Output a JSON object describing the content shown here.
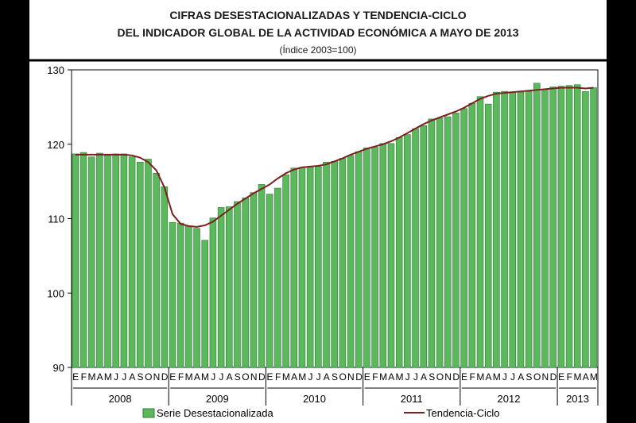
{
  "chart_data": {
    "type": "bar",
    "title_lines": [
      "CIFRAS DESESTACIONALIZADAS Y TENDENCIA-CICLO",
      "DEL INDICADOR GLOBAL DE LA ACTIVIDAD ECONÓMICA A MAYO DE 2013"
    ],
    "subtitle": "(Índice 2003=100)",
    "ylim": [
      90,
      130
    ],
    "yticks": [
      90,
      100,
      110,
      120,
      130
    ],
    "grid": false,
    "legend_position": "bottom",
    "month_labels": [
      "E",
      "F",
      "M",
      "A",
      "M",
      "J",
      "J",
      "A",
      "S",
      "O",
      "N",
      "D",
      "E",
      "F",
      "M",
      "A",
      "M",
      "J",
      "J",
      "A",
      "S",
      "O",
      "N",
      "D",
      "E",
      "F",
      "M",
      "A",
      "M",
      "J",
      "J",
      "A",
      "S",
      "O",
      "N",
      "D",
      "E",
      "F",
      "M",
      "A",
      "M",
      "J",
      "J",
      "A",
      "S",
      "O",
      "N",
      "D",
      "E",
      "F",
      "M",
      "A",
      "M",
      "J",
      "J",
      "A",
      "S",
      "O",
      "N",
      "D",
      "E",
      "F",
      "M",
      "A",
      "M"
    ],
    "years": [
      {
        "label": "2008",
        "start": 0,
        "count": 12
      },
      {
        "label": "2009",
        "start": 12,
        "count": 12
      },
      {
        "label": "2010",
        "start": 24,
        "count": 12
      },
      {
        "label": "2011",
        "start": 36,
        "count": 12
      },
      {
        "label": "2012",
        "start": 48,
        "count": 12
      },
      {
        "label": "2013",
        "start": 60,
        "count": 5
      }
    ],
    "series": [
      {
        "name": "Serie Desestacionalizada",
        "kind": "bar",
        "color": "#5cb85c",
        "values": [
          118.7,
          118.9,
          118.3,
          118.8,
          118.5,
          118.7,
          118.7,
          118.3,
          117.6,
          118.0,
          116.1,
          114.3,
          109.5,
          109.4,
          109.0,
          108.7,
          107.1,
          110.1,
          111.5,
          111.6,
          112.3,
          112.8,
          113.5,
          114.6,
          113.3,
          114.1,
          115.9,
          116.8,
          116.9,
          117.0,
          117.0,
          117.6,
          117.7,
          118.1,
          118.5,
          119.0,
          119.5,
          119.6,
          120.1,
          120.1,
          120.9,
          121.3,
          122.1,
          122.5,
          123.4,
          123.5,
          123.7,
          124.2,
          124.8,
          125.5,
          126.4,
          125.4,
          127.0,
          127.1,
          127.0,
          127.0,
          127.1,
          128.2,
          127.4,
          127.7,
          127.8,
          127.9,
          128.0,
          127.1,
          127.6
        ]
      },
      {
        "name": "Tendencia-Ciclo",
        "kind": "line",
        "color": "#7b1f1f",
        "values": [
          118.6,
          118.6,
          118.6,
          118.6,
          118.6,
          118.6,
          118.6,
          118.5,
          118.2,
          117.6,
          116.5,
          114.2,
          110.6,
          109.3,
          109.0,
          108.9,
          109.1,
          109.6,
          110.4,
          111.2,
          112.0,
          112.7,
          113.4,
          114.0,
          114.6,
          115.4,
          116.1,
          116.6,
          116.9,
          117.0,
          117.1,
          117.3,
          117.7,
          118.1,
          118.6,
          119.0,
          119.4,
          119.7,
          120.0,
          120.4,
          120.9,
          121.5,
          122.1,
          122.7,
          123.2,
          123.6,
          124.0,
          124.4,
          124.9,
          125.5,
          126.1,
          126.5,
          126.8,
          126.9,
          127.0,
          127.1,
          127.2,
          127.3,
          127.4,
          127.5,
          127.6,
          127.6,
          127.6,
          127.5,
          127.6
        ]
      }
    ]
  }
}
